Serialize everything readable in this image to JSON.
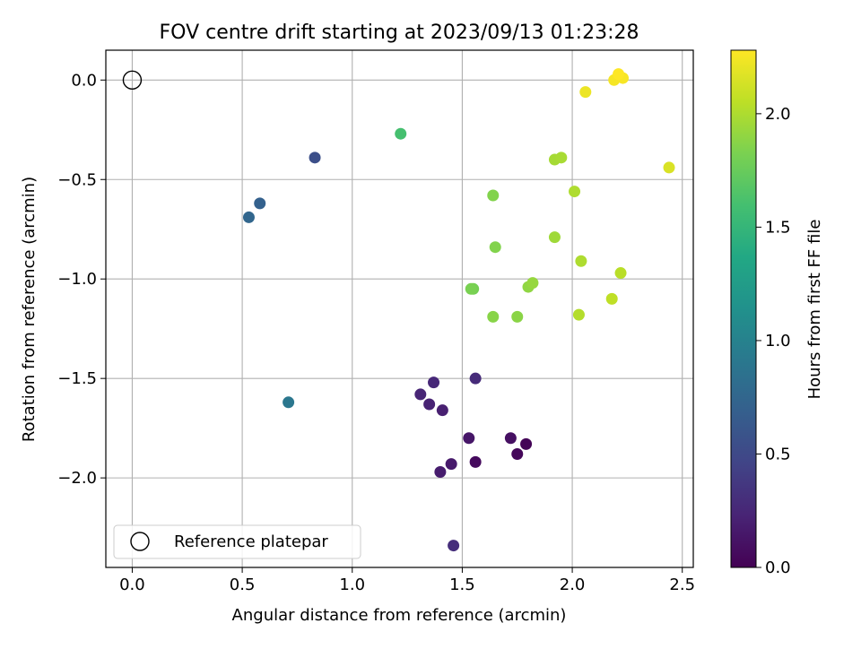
{
  "chart_data": {
    "type": "scatter",
    "title": "FOV centre drift starting at 2023/09/13 01:23:28",
    "xlabel": "Angular distance from reference (arcmin)",
    "ylabel": "Rotation from reference (arcmin)",
    "xlim": [
      -0.12,
      2.55
    ],
    "ylim": [
      -2.45,
      0.15
    ],
    "xticks": [
      0.0,
      0.5,
      1.0,
      1.5,
      2.0,
      2.5
    ],
    "xtick_labels": [
      "0.0",
      "0.5",
      "1.0",
      "1.5",
      "2.0",
      "2.5"
    ],
    "yticks": [
      0.0,
      -0.5,
      -1.0,
      -1.5,
      -2.0
    ],
    "ytick_labels": [
      "0.0",
      "−0.5",
      "−1.0",
      "−1.5",
      "−2.0"
    ],
    "grid": true,
    "legend": {
      "position": "lower-left",
      "entries": [
        "Reference platepar"
      ]
    },
    "reference_point": {
      "x": 0.0,
      "y": 0.0,
      "label": "Reference platepar"
    },
    "colorbar": {
      "label": "Hours from first FF file",
      "colormap": "viridis",
      "range": [
        0.0,
        2.28
      ],
      "ticks": [
        0.0,
        0.5,
        1.0,
        1.5,
        2.0
      ],
      "tick_labels": [
        "0.0",
        "0.5",
        "1.0",
        "1.5",
        "2.0"
      ]
    },
    "points": [
      {
        "x": 1.79,
        "y": -1.83,
        "c": 0.02
      },
      {
        "x": 1.75,
        "y": -1.88,
        "c": 0.04
      },
      {
        "x": 1.56,
        "y": -1.92,
        "c": 0.06
      },
      {
        "x": 1.72,
        "y": -1.8,
        "c": 0.1
      },
      {
        "x": 1.53,
        "y": -1.8,
        "c": 0.14
      },
      {
        "x": 1.45,
        "y": -1.93,
        "c": 0.16
      },
      {
        "x": 1.4,
        "y": -1.97,
        "c": 0.18
      },
      {
        "x": 1.41,
        "y": -1.66,
        "c": 0.2
      },
      {
        "x": 1.35,
        "y": -1.63,
        "c": 0.22
      },
      {
        "x": 1.31,
        "y": -1.58,
        "c": 0.24
      },
      {
        "x": 1.37,
        "y": -1.52,
        "c": 0.26
      },
      {
        "x": 1.56,
        "y": -1.5,
        "c": 0.28
      },
      {
        "x": 1.46,
        "y": -2.34,
        "c": 0.3
      },
      {
        "x": 0.83,
        "y": -0.39,
        "c": 0.55
      },
      {
        "x": 0.58,
        "y": -0.62,
        "c": 0.7
      },
      {
        "x": 0.53,
        "y": -0.69,
        "c": 0.75
      },
      {
        "x": 0.71,
        "y": -1.62,
        "c": 0.9
      },
      {
        "x": 1.22,
        "y": -0.27,
        "c": 1.6
      },
      {
        "x": 1.55,
        "y": -1.05,
        "c": 1.8
      },
      {
        "x": 1.54,
        "y": -1.05,
        "c": 1.82
      },
      {
        "x": 1.64,
        "y": -0.58,
        "c": 1.85
      },
      {
        "x": 1.65,
        "y": -0.84,
        "c": 1.85
      },
      {
        "x": 1.64,
        "y": -1.19,
        "c": 1.87
      },
      {
        "x": 1.75,
        "y": -1.19,
        "c": 1.88
      },
      {
        "x": 1.8,
        "y": -1.04,
        "c": 1.9
      },
      {
        "x": 1.82,
        "y": -1.02,
        "c": 1.92
      },
      {
        "x": 1.92,
        "y": -0.79,
        "c": 1.95
      },
      {
        "x": 1.92,
        "y": -0.4,
        "c": 1.97
      },
      {
        "x": 1.95,
        "y": -0.39,
        "c": 1.98
      },
      {
        "x": 2.01,
        "y": -0.56,
        "c": 2.0
      },
      {
        "x": 2.04,
        "y": -0.91,
        "c": 2.0
      },
      {
        "x": 2.03,
        "y": -1.18,
        "c": 2.02
      },
      {
        "x": 2.22,
        "y": -0.97,
        "c": 2.04
      },
      {
        "x": 2.18,
        "y": -1.1,
        "c": 2.06
      },
      {
        "x": 2.44,
        "y": -0.44,
        "c": 2.15
      },
      {
        "x": 2.06,
        "y": -0.06,
        "c": 2.22
      },
      {
        "x": 2.19,
        "y": 0.0,
        "c": 2.25
      },
      {
        "x": 2.23,
        "y": 0.01,
        "c": 2.26
      },
      {
        "x": 2.21,
        "y": 0.03,
        "c": 2.28
      }
    ]
  }
}
